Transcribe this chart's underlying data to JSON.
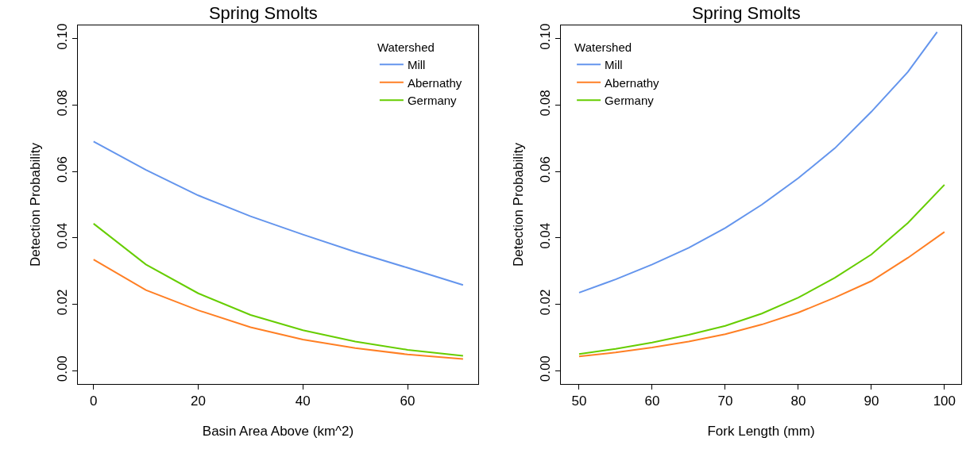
{
  "chart_data": [
    {
      "type": "line",
      "title": "Spring Smolts",
      "xlabel": "Basin Area Above (km^2)",
      "ylabel": "Detection Probability",
      "legend_title": "Watershed",
      "legend": "top right",
      "grid": false,
      "marker": "none",
      "line_style": "solid",
      "x": [
        0,
        10,
        20,
        30,
        40,
        50,
        60,
        70.6
      ],
      "series": [
        {
          "name": "Mill",
          "color": "#6495ed",
          "values": [
            0.069,
            0.0605,
            0.0528,
            0.0465,
            0.041,
            0.0358,
            0.031,
            0.0258
          ]
        },
        {
          "name": "Abernathy",
          "color": "#ff7f24",
          "values": [
            0.0335,
            0.0243,
            0.0182,
            0.0131,
            0.0094,
            0.0068,
            0.0049,
            0.0035
          ]
        },
        {
          "name": "Germany",
          "color": "#66cd00",
          "values": [
            0.0443,
            0.032,
            0.0233,
            0.0168,
            0.0122,
            0.0088,
            0.0063,
            0.0045
          ]
        }
      ],
      "xlim": [
        -3,
        73.5
      ],
      "xticks": [
        0,
        20,
        40,
        60
      ],
      "ylim": [
        -0.004,
        0.104
      ],
      "yticks": [
        {
          "value": 0,
          "label": "0.00"
        },
        {
          "value": 0.02,
          "label": "0.02"
        },
        {
          "value": 0.04,
          "label": "0.04"
        },
        {
          "value": 0.06,
          "label": "0.06"
        },
        {
          "value": 0.08,
          "label": "0.08"
        },
        {
          "value": 0.1,
          "label": "0.10"
        }
      ]
    },
    {
      "type": "line",
      "title": "Spring Smolts",
      "xlabel": "Fork Length (mm)",
      "ylabel": "Detection Probability",
      "legend_title": "Watershed",
      "legend": "top left",
      "grid": false,
      "marker": "none",
      "line_style": "solid",
      "series": [
        {
          "name": "Mill",
          "color": "#6495ed",
          "x": [
            50,
            55,
            60,
            65,
            70,
            75,
            80,
            85,
            90,
            95,
            99
          ],
          "values": [
            0.0235,
            0.0275,
            0.032,
            0.037,
            0.043,
            0.05,
            0.058,
            0.067,
            0.078,
            0.09,
            0.102
          ]
        },
        {
          "name": "Abernathy",
          "color": "#ff7f24",
          "x": [
            50,
            55,
            60,
            65,
            70,
            75,
            80,
            85,
            90,
            95,
            100
          ],
          "values": [
            0.0043,
            0.0055,
            0.007,
            0.0088,
            0.011,
            0.0139,
            0.0175,
            0.022,
            0.027,
            0.034,
            0.0418
          ]
        },
        {
          "name": "Germany",
          "color": "#66cd00",
          "x": [
            50,
            55,
            60,
            65,
            70,
            75,
            80,
            85,
            90,
            95,
            100
          ],
          "values": [
            0.005,
            0.0066,
            0.0085,
            0.0108,
            0.0135,
            0.0172,
            0.022,
            0.028,
            0.035,
            0.0445,
            0.056
          ]
        }
      ],
      "xlim": [
        47.5,
        102.3
      ],
      "xticks": [
        50,
        60,
        70,
        80,
        90,
        100
      ],
      "ylim": [
        -0.004,
        0.104
      ],
      "yticks": [
        {
          "value": 0,
          "label": "0.00"
        },
        {
          "value": 0.02,
          "label": "0.02"
        },
        {
          "value": 0.04,
          "label": "0.04"
        },
        {
          "value": 0.06,
          "label": "0.06"
        },
        {
          "value": 0.08,
          "label": "0.08"
        },
        {
          "value": 0.1,
          "label": "0.10"
        }
      ]
    }
  ]
}
